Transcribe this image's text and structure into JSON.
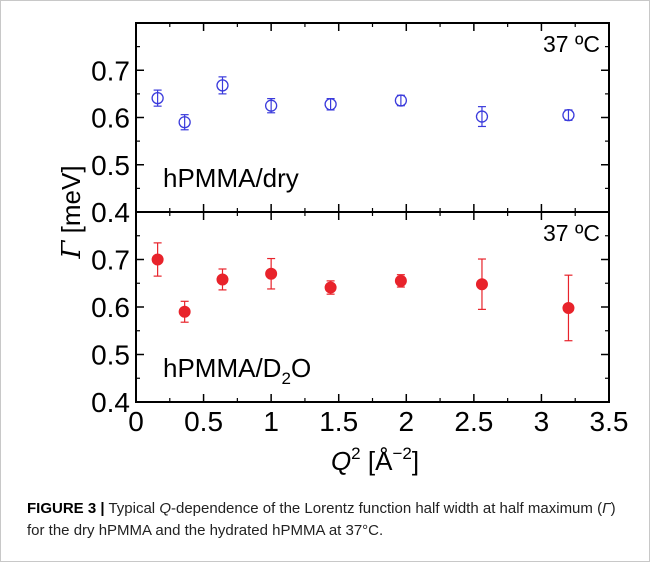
{
  "caption": {
    "label": "FIGURE 3 |",
    "text_before_q": "Typical ",
    "q": "Q",
    "text_after_q": "-dependence of the Lorentz function half width at half maximum (",
    "gamma": "Γ",
    "text_end": ") for the dry hPMMA and the hydrated hPMMA at 37°C."
  },
  "chart_data": [
    {
      "type": "scatter",
      "panel": "top",
      "annotation": "37 ºC",
      "panel_label": "hPMMA/dry",
      "marker": "open-circle",
      "color": "#3b3bdc",
      "ylim": [
        0.4,
        0.8
      ],
      "yticks": [
        "0.4",
        "0.5",
        "0.6",
        "0.7"
      ],
      "xlim": [
        0,
        3.5
      ],
      "points": [
        {
          "x": 0.16,
          "y": 0.641,
          "err": 0.017
        },
        {
          "x": 0.36,
          "y": 0.59,
          "err": 0.016
        },
        {
          "x": 0.64,
          "y": 0.668,
          "err": 0.018
        },
        {
          "x": 1.0,
          "y": 0.625,
          "err": 0.015
        },
        {
          "x": 1.44,
          "y": 0.628,
          "err": 0.012
        },
        {
          "x": 1.96,
          "y": 0.636,
          "err": 0.011
        },
        {
          "x": 2.56,
          "y": 0.602,
          "err": 0.021
        },
        {
          "x": 3.2,
          "y": 0.605,
          "err": 0.011
        }
      ]
    },
    {
      "type": "scatter",
      "panel": "bottom",
      "annotation": "37 ºC",
      "panel_label_main": "hPMMA/D",
      "panel_label_sub": "2",
      "panel_label_end": "O",
      "marker": "filled-circle",
      "color": "#e8232b",
      "ylim": [
        0.4,
        0.8
      ],
      "yticks": [
        "0.4",
        "0.5",
        "0.6",
        "0.7"
      ],
      "xlim": [
        0,
        3.5
      ],
      "xticks": [
        "0",
        "0.5",
        "1",
        "1.5",
        "2",
        "2.5",
        "3",
        "3.5"
      ],
      "points": [
        {
          "x": 0.16,
          "y": 0.7,
          "err": 0.035
        },
        {
          "x": 0.36,
          "y": 0.59,
          "err": 0.022
        },
        {
          "x": 0.64,
          "y": 0.658,
          "err": 0.022
        },
        {
          "x": 1.0,
          "y": 0.67,
          "err": 0.032
        },
        {
          "x": 1.44,
          "y": 0.641,
          "err": 0.014
        },
        {
          "x": 1.96,
          "y": 0.655,
          "err": 0.013
        },
        {
          "x": 2.56,
          "y": 0.648,
          "err": 0.053
        },
        {
          "x": 3.2,
          "y": 0.598,
          "err": 0.069
        }
      ]
    }
  ],
  "axes": {
    "ylabel_symbol": "Γ",
    "ylabel_unit": " [meV]",
    "xlabel_symbol": "Q",
    "xlabel_sup": "2",
    "xlabel_unit": " [Å",
    "xlabel_unit_sup": "−2",
    "xlabel_close": "]"
  }
}
